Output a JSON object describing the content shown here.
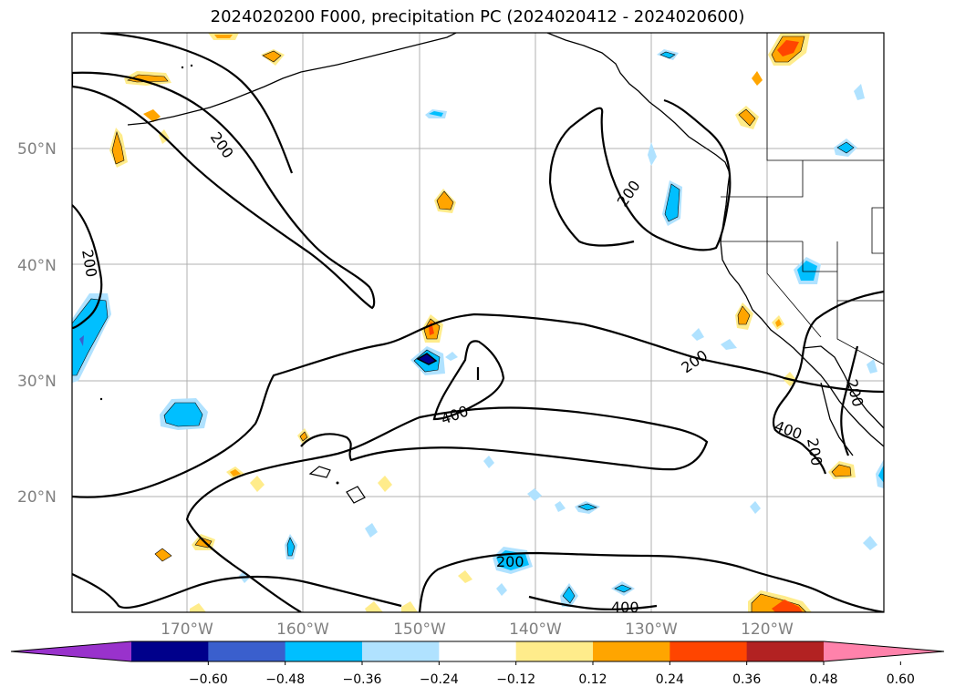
{
  "title": "2024020200 F000, precipitation PC (2024020412 - 2024020600)",
  "lat_labels": [
    "50°N",
    "40°N",
    "30°N",
    "20°N"
  ],
  "lon_labels": [
    "170°W",
    "160°W",
    "150°W",
    "140°W",
    "130°W",
    "120°W"
  ],
  "contour_labels": [
    "200",
    "200",
    "200",
    "200",
    "400",
    "200",
    "400",
    "200",
    "200",
    "400"
  ],
  "colorbar": {
    "tick_labels": [
      "−0.60",
      "−0.48",
      "−0.36",
      "−0.24",
      "−0.12",
      "0.12",
      "0.24",
      "0.36",
      "0.48",
      "0.60"
    ],
    "colors": [
      "#9932cc",
      "#00008b",
      "#3a5fcd",
      "#00bfff",
      "#b0e2ff",
      "#ffffff",
      "#ffec8b",
      "#ffa500",
      "#ff4500",
      "#b22222",
      "#ff82ab"
    ]
  }
}
